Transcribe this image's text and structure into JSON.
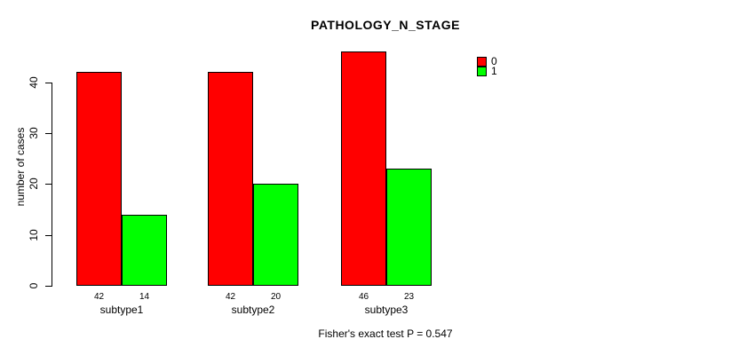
{
  "chart_data": {
    "type": "bar",
    "title": "PATHOLOGY_N_STAGE",
    "xlabel": "",
    "ylabel": "number of cases",
    "categories": [
      "subtype1",
      "subtype2",
      "subtype3"
    ],
    "series": [
      {
        "name": "0",
        "color": "#ff0000",
        "values": [
          42,
          42,
          46
        ]
      },
      {
        "name": "1",
        "color": "#00ff00",
        "values": [
          14,
          20,
          23
        ]
      }
    ],
    "show_bar_values": true,
    "yticks": [
      0,
      10,
      20,
      30,
      40
    ],
    "ylim": [
      0,
      46
    ],
    "grid": false,
    "legend": {
      "position": "top-right",
      "entries": [
        "0",
        "1"
      ]
    },
    "annotation": "Fisher's exact test P = 0.547",
    "colors": {
      "foreground": "#000000",
      "background": "#ffffff"
    }
  }
}
